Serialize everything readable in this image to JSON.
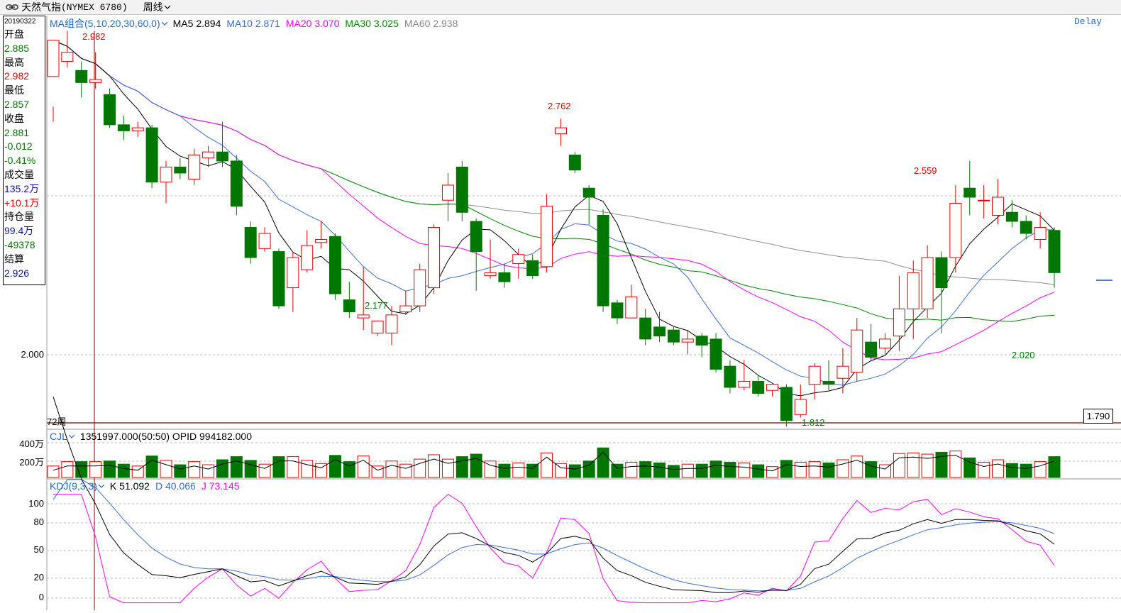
{
  "topbar": {
    "symbol_name": "天然气指",
    "symbol_code": "(NYMEX 6780)",
    "period": "周线"
  },
  "infobox": {
    "date": "20190322",
    "open_label": "开盘",
    "open": "2.885",
    "high_label": "最高",
    "high": "2.982",
    "low_label": "最低",
    "low": "2.857",
    "close_label": "收盘",
    "close": "2.881",
    "change": "-0.012",
    "change_pct": "-0.41%",
    "volume_label": "成交量",
    "volume": "135.2万",
    "volume_change": "+10.1万",
    "oi_label": "持仓量",
    "oi": "99.4万",
    "oi_change": "-49378",
    "settle_label": "结算",
    "settle": "2.926"
  },
  "main_legend": {
    "group": "MA组合(5,10,20,30,60,0)",
    "ma5": "MA5 2.894",
    "ma10": "MA10 2.871",
    "ma20": "MA20 3.070",
    "ma30": "MA30 3.025",
    "ma60": "MA60 2.938",
    "delay": "Delay"
  },
  "price_axis": {
    "label_2000": "2.000",
    "bottom_box": "1.790",
    "weeks": "72周"
  },
  "annotations": {
    "a1": "2.982",
    "a2": "2.762",
    "a3": "2.177",
    "a4": "2.559",
    "a5": "1.812",
    "a6": "2.020"
  },
  "volume_legend": {
    "name": "CJL",
    "values": "1351997.000(50:50)  OPID 994182.000"
  },
  "volume_axis": {
    "l400": "400万",
    "l200": "200万"
  },
  "kdj_legend": {
    "name": "KDJ(9,3,3)",
    "k": "K 51.092",
    "d": "D 40.066",
    "j": "J 73.145"
  },
  "kdj_axis": {
    "l100": "100",
    "l80": "80",
    "l50": "50",
    "l20": "20",
    "l0": "0"
  },
  "colors": {
    "up": "#e60000",
    "down": "#007700",
    "ma5": "#000000",
    "ma10": "#3a6fd8",
    "ma20": "#ff00ff",
    "ma30": "#008800",
    "ma60": "#909090"
  },
  "chart_data": {
    "type": "candlestick",
    "price_range": [
      1.79,
      3.05
    ],
    "candles": [
      [
        2.9,
        3.02,
        2.8,
        2.75
      ],
      [
        2.95,
        2.98,
        3.05,
        2.93
      ],
      [
        2.92,
        2.88,
        2.95,
        2.83
      ],
      [
        2.88,
        2.89,
        2.98,
        2.86
      ],
      [
        2.84,
        2.74,
        2.86,
        2.73
      ],
      [
        2.74,
        2.72,
        2.77,
        2.69
      ],
      [
        2.72,
        2.73,
        2.75,
        2.7
      ],
      [
        2.73,
        2.55,
        2.74,
        2.53
      ],
      [
        2.55,
        2.6,
        2.62,
        2.48
      ],
      [
        2.6,
        2.58,
        2.63,
        2.56
      ],
      [
        2.56,
        2.64,
        2.66,
        2.54
      ],
      [
        2.63,
        2.65,
        2.67,
        2.6
      ],
      [
        2.65,
        2.62,
        2.75,
        2.6
      ],
      [
        2.62,
        2.47,
        2.64,
        2.44
      ],
      [
        2.4,
        2.3,
        2.42,
        2.28
      ],
      [
        2.33,
        2.38,
        2.4,
        2.32
      ],
      [
        2.32,
        2.14,
        2.33,
        2.13
      ],
      [
        2.2,
        2.3,
        2.32,
        2.12
      ],
      [
        2.26,
        2.34,
        2.39,
        2.25
      ],
      [
        2.35,
        2.36,
        2.42,
        2.33
      ],
      [
        2.37,
        2.18,
        2.38,
        2.16
      ],
      [
        2.16,
        2.12,
        2.22,
        2.1
      ],
      [
        2.1,
        2.11,
        2.27,
        2.06
      ],
      [
        2.05,
        2.09,
        2.09,
        2.04
      ],
      [
        2.05,
        2.11,
        2.14,
        2.01
      ],
      [
        2.12,
        2.14,
        2.19,
        2.11
      ],
      [
        2.14,
        2.26,
        2.28,
        2.12
      ],
      [
        2.2,
        2.4,
        2.41,
        2.18
      ],
      [
        2.49,
        2.54,
        2.58,
        2.42
      ],
      [
        2.6,
        2.45,
        2.62,
        2.42
      ],
      [
        2.42,
        2.32,
        2.43,
        2.19
      ],
      [
        2.24,
        2.25,
        2.36,
        2.23
      ],
      [
        2.25,
        2.22,
        2.28,
        2.2
      ],
      [
        2.28,
        2.31,
        2.33,
        2.23
      ],
      [
        2.29,
        2.24,
        2.31,
        2.23
      ],
      [
        2.27,
        2.47,
        2.51,
        2.25
      ],
      [
        2.71,
        2.73,
        2.76,
        2.67
      ],
      [
        2.64,
        2.59,
        2.65,
        2.58
      ],
      [
        2.53,
        2.5,
        2.54,
        2.41
      ],
      [
        2.44,
        2.14,
        2.46,
        2.12
      ],
      [
        2.15,
        2.1,
        2.16,
        2.08
      ],
      [
        2.1,
        2.17,
        2.21,
        2.1
      ],
      [
        2.1,
        2.03,
        2.13,
        2.01
      ],
      [
        2.07,
        2.04,
        2.12,
        2.02
      ],
      [
        2.06,
        2.02,
        2.07,
        2.01
      ],
      [
        2.02,
        2.03,
        2.06,
        1.98
      ],
      [
        2.04,
        2.01,
        2.05,
        1.97
      ],
      [
        2.03,
        1.93,
        2.05,
        1.92
      ],
      [
        1.94,
        1.87,
        1.96,
        1.85
      ],
      [
        1.87,
        1.89,
        1.96,
        1.86
      ],
      [
        1.89,
        1.85,
        1.91,
        1.84
      ],
      [
        1.86,
        1.88,
        1.88,
        1.84
      ],
      [
        1.87,
        1.76,
        1.88,
        1.74
      ],
      [
        1.78,
        1.83,
        1.88,
        1.77
      ],
      [
        1.88,
        1.94,
        1.95,
        1.83
      ],
      [
        1.89,
        1.88,
        1.96,
        1.86
      ],
      [
        1.9,
        1.94,
        2.0,
        1.85
      ],
      [
        1.92,
        2.06,
        2.1,
        1.89
      ],
      [
        2.02,
        1.97,
        2.08,
        1.96
      ],
      [
        2.0,
        2.03,
        2.05,
        1.98
      ],
      [
        2.04,
        2.13,
        2.24,
        1.99
      ],
      [
        2.13,
        2.25,
        2.29,
        2.03
      ],
      [
        2.13,
        2.3,
        2.34,
        2.1
      ],
      [
        2.3,
        2.2,
        2.32,
        2.05
      ],
      [
        2.3,
        2.48,
        2.54,
        2.25
      ],
      [
        2.53,
        2.5,
        2.62,
        2.44
      ],
      [
        2.49,
        2.49,
        2.54,
        2.43
      ],
      [
        2.44,
        2.5,
        2.56,
        2.41
      ],
      [
        2.45,
        2.42,
        2.49,
        2.4
      ],
      [
        2.42,
        2.38,
        2.44,
        2.36
      ],
      [
        2.36,
        2.4,
        2.45,
        2.33
      ],
      [
        2.39,
        2.25,
        2.4,
        2.2
      ]
    ],
    "vol_max": 400
  }
}
